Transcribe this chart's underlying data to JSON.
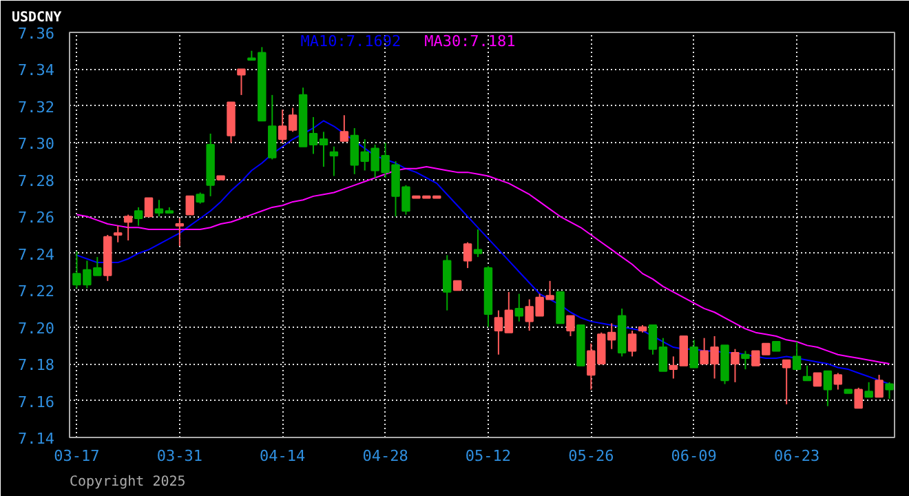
{
  "chart_data": {
    "type": "candlestick",
    "title": "USDCNY",
    "annotations": [
      "Copyright 2025"
    ],
    "categories": [
      "03-17",
      null,
      null,
      null,
      null,
      null,
      null,
      null,
      null,
      null,
      "03-31",
      null,
      null,
      null,
      null,
      null,
      null,
      null,
      null,
      null,
      "04-14",
      null,
      null,
      null,
      null,
      null,
      null,
      null,
      null,
      null,
      "04-28",
      null,
      null,
      null,
      null,
      null,
      null,
      null,
      null,
      null,
      "05-12",
      null,
      null,
      null,
      null,
      null,
      null,
      null,
      null,
      null,
      "05-26",
      null,
      null,
      null,
      null,
      null,
      null,
      null,
      null,
      null,
      "06-09",
      null,
      null,
      null,
      null,
      null,
      null,
      null,
      null,
      null,
      "06-23",
      null,
      null,
      null,
      null,
      null,
      null,
      null,
      null,
      null
    ],
    "ohlc": [
      [
        7.229,
        7.241,
        7.221,
        7.223
      ],
      [
        7.231,
        7.236,
        7.221,
        7.223
      ],
      [
        7.232,
        7.238,
        7.228,
        7.228
      ],
      [
        7.228,
        7.25,
        7.225,
        7.249
      ],
      [
        7.25,
        7.255,
        7.246,
        7.251
      ],
      [
        7.257,
        7.261,
        7.247,
        7.26
      ],
      [
        7.263,
        7.265,
        7.255,
        7.259
      ],
      [
        7.26,
        7.27,
        7.26,
        7.27
      ],
      [
        7.264,
        7.269,
        7.26,
        7.262
      ],
      [
        7.263,
        7.265,
        7.262,
        7.262
      ],
      [
        7.255,
        7.259,
        7.244,
        7.256
      ],
      [
        7.261,
        7.271,
        7.261,
        7.271
      ],
      [
        7.272,
        7.273,
        7.267,
        7.268
      ],
      [
        7.299,
        7.305,
        7.271,
        7.277
      ],
      [
        7.28,
        7.282,
        7.28,
        7.282
      ],
      [
        7.304,
        7.322,
        7.3,
        7.322
      ],
      [
        7.337,
        7.34,
        7.326,
        7.34
      ],
      [
        7.346,
        7.35,
        7.345,
        7.345
      ],
      [
        7.349,
        7.352,
        7.312,
        7.312
      ],
      [
        7.309,
        7.326,
        7.291,
        7.292
      ],
      [
        7.302,
        7.318,
        7.3,
        7.309
      ],
      [
        7.307,
        7.319,
        7.306,
        7.315
      ],
      [
        7.326,
        7.33,
        7.298,
        7.298
      ],
      [
        7.305,
        7.314,
        7.294,
        7.299
      ],
      [
        7.302,
        7.306,
        7.287,
        7.299
      ],
      [
        7.295,
        7.298,
        7.282,
        7.293
      ],
      [
        7.301,
        7.315,
        7.301,
        7.306
      ],
      [
        7.304,
        7.308,
        7.283,
        7.288
      ],
      [
        7.295,
        7.302,
        7.285,
        7.29
      ],
      [
        7.297,
        7.299,
        7.281,
        7.285
      ],
      [
        7.293,
        7.3,
        7.281,
        7.284
      ],
      [
        7.288,
        7.29,
        7.26,
        7.271
      ],
      [
        7.276,
        7.277,
        7.261,
        7.263
      ],
      [
        7.27,
        7.271,
        7.27,
        7.271
      ],
      [
        7.27,
        7.271,
        7.27,
        7.271
      ],
      [
        7.27,
        7.271,
        7.27,
        7.271
      ],
      [
        7.236,
        7.239,
        7.209,
        7.219
      ],
      [
        7.22,
        7.225,
        7.22,
        7.225
      ],
      [
        7.236,
        7.246,
        7.232,
        7.245
      ],
      [
        7.242,
        7.253,
        7.238,
        7.24
      ],
      [
        7.232,
        7.233,
        7.2,
        7.207
      ],
      [
        7.198,
        7.209,
        7.185,
        7.205
      ],
      [
        7.197,
        7.219,
        7.197,
        7.209
      ],
      [
        7.21,
        7.218,
        7.203,
        7.206
      ],
      [
        7.203,
        7.215,
        7.198,
        7.211
      ],
      [
        7.206,
        7.218,
        7.206,
        7.216
      ],
      [
        7.215,
        7.225,
        7.215,
        7.217
      ],
      [
        7.219,
        7.219,
        7.202,
        7.202
      ],
      [
        7.198,
        7.206,
        7.195,
        7.206
      ],
      [
        7.201,
        7.201,
        7.179,
        7.179
      ],
      [
        7.174,
        7.191,
        7.166,
        7.187
      ],
      [
        7.18,
        7.197,
        7.18,
        7.196
      ],
      [
        7.193,
        7.202,
        7.188,
        7.197
      ],
      [
        7.206,
        7.21,
        7.184,
        7.186
      ],
      [
        7.187,
        7.198,
        7.184,
        7.196
      ],
      [
        7.198,
        7.201,
        7.197,
        7.2
      ],
      [
        7.201,
        7.201,
        7.185,
        7.188
      ],
      [
        7.189,
        7.194,
        7.176,
        7.176
      ],
      [
        7.177,
        7.184,
        7.172,
        7.179
      ],
      [
        7.179,
        7.195,
        7.179,
        7.195
      ],
      [
        7.189,
        7.193,
        7.178,
        7.178
      ],
      [
        7.18,
        7.194,
        7.18,
        7.187
      ],
      [
        7.18,
        7.195,
        7.172,
        7.189
      ],
      [
        7.19,
        7.19,
        7.169,
        7.171
      ],
      [
        7.18,
        7.188,
        7.17,
        7.186
      ],
      [
        7.185,
        7.187,
        7.177,
        7.183
      ],
      [
        7.179,
        7.187,
        7.179,
        7.187
      ],
      [
        7.185,
        7.191,
        7.185,
        7.191
      ],
      [
        7.192,
        7.192,
        7.187,
        7.187
      ],
      [
        7.178,
        7.182,
        7.158,
        7.182
      ],
      [
        7.184,
        7.192,
        7.177,
        7.177
      ],
      [
        7.173,
        7.179,
        7.171,
        7.171
      ],
      [
        7.168,
        7.175,
        7.168,
        7.175
      ],
      [
        7.176,
        7.176,
        7.157,
        7.166
      ],
      [
        7.169,
        7.175,
        7.166,
        7.174
      ],
      [
        7.166,
        7.166,
        7.164,
        7.164
      ],
      [
        7.156,
        7.167,
        7.156,
        7.166
      ],
      [
        7.165,
        7.17,
        7.162,
        7.162
      ],
      [
        7.162,
        7.174,
        7.162,
        7.171
      ],
      [
        7.169,
        7.17,
        7.161,
        7.166
      ]
    ],
    "colors": [
      "#00a800",
      "#00a800",
      "#00a800",
      "#ff5b5b",
      "#ff5b5b",
      "#ff5b5b",
      "#00a800",
      "#ff5b5b",
      "#00a800",
      "#00a800",
      "#ff5b5b",
      "#ff5b5b",
      "#00a800",
      "#00a800",
      "#ff5b5b",
      "#ff5b5b",
      "#ff5b5b",
      "#00a800",
      "#00a800",
      "#00a800",
      "#ff5b5b",
      "#ff5b5b",
      "#00a800",
      "#00a800",
      "#00a800",
      "#00a800",
      "#ff5b5b",
      "#00a800",
      "#00a800",
      "#00a800",
      "#00a800",
      "#00a800",
      "#00a800",
      "#ff5b5b",
      "#ff5b5b",
      "#ff5b5b",
      "#00a800",
      "#ff5b5b",
      "#ff5b5b",
      "#00a800",
      "#00a800",
      "#ff5b5b",
      "#ff5b5b",
      "#00a800",
      "#ff5b5b",
      "#ff5b5b",
      "#ff5b5b",
      "#00a800",
      "#ff5b5b",
      "#00a800",
      "#ff5b5b",
      "#ff5b5b",
      "#ff5b5b",
      "#00a800",
      "#ff5b5b",
      "#ff5b5b",
      "#00a800",
      "#00a800",
      "#ff5b5b",
      "#ff5b5b",
      "#00a800",
      "#ff5b5b",
      "#ff5b5b",
      "#00a800",
      "#ff5b5b",
      "#00a800",
      "#ff5b5b",
      "#ff5b5b",
      "#00a800",
      "#ff5b5b",
      "#00a800",
      "#00a800",
      "#ff5b5b",
      "#00a800",
      "#ff5b5b",
      "#00a800",
      "#ff5b5b",
      "#00a800",
      "#ff5b5b",
      "#00a800"
    ],
    "series": [
      {
        "name": "MA10:7.1692",
        "type": "line",
        "color": "#0000ff",
        "values": [
          7.239,
          7.237,
          7.235,
          7.235,
          7.235,
          7.237,
          7.24,
          7.242,
          7.245,
          7.248,
          7.251,
          7.255,
          7.259,
          7.263,
          7.268,
          7.274,
          7.279,
          7.285,
          7.289,
          7.294,
          7.298,
          7.302,
          7.305,
          7.308,
          7.312,
          7.309,
          7.305,
          7.301,
          7.297,
          7.293,
          7.291,
          7.289,
          7.286,
          7.284,
          7.281,
          7.278,
          7.272,
          7.266,
          7.26,
          7.254,
          7.248,
          7.242,
          7.236,
          7.23,
          7.224,
          7.218,
          7.215,
          7.212,
          7.208,
          7.205,
          7.203,
          7.202,
          7.201,
          7.2,
          7.199,
          7.198,
          7.195,
          7.192,
          7.189,
          7.188,
          7.188,
          7.187,
          7.187,
          7.186,
          7.186,
          7.185,
          7.184,
          7.183,
          7.183,
          7.184,
          7.183,
          7.182,
          7.181,
          7.18,
          7.178,
          7.177,
          7.175,
          7.173,
          7.171,
          7.169
        ]
      },
      {
        "name": "MA30:7.181",
        "type": "line",
        "color": "#ff00ff",
        "values": [
          7.261,
          7.26,
          7.258,
          7.256,
          7.255,
          7.254,
          7.254,
          7.253,
          7.253,
          7.253,
          7.253,
          7.253,
          7.253,
          7.254,
          7.256,
          7.257,
          7.259,
          7.261,
          7.263,
          7.265,
          7.266,
          7.268,
          7.269,
          7.271,
          7.272,
          7.273,
          7.275,
          7.277,
          7.279,
          7.281,
          7.283,
          7.285,
          7.286,
          7.286,
          7.287,
          7.286,
          7.285,
          7.284,
          7.284,
          7.283,
          7.282,
          7.28,
          7.278,
          7.275,
          7.272,
          7.268,
          7.264,
          7.26,
          7.257,
          7.254,
          7.25,
          7.246,
          7.242,
          7.238,
          7.234,
          7.229,
          7.226,
          7.222,
          7.219,
          7.216,
          7.213,
          7.21,
          7.208,
          7.205,
          7.202,
          7.199,
          7.197,
          7.196,
          7.195,
          7.193,
          7.192,
          7.19,
          7.189,
          7.187,
          7.185,
          7.184,
          7.183,
          7.182,
          7.181,
          7.18
        ]
      }
    ],
    "ylim": [
      7.14,
      7.36
    ],
    "yticks": [
      7.14,
      7.16,
      7.18,
      {
        "value": 7.2,
        "label": "7.20"
      },
      7.22,
      7.24,
      7.26,
      7.28,
      {
        "value": 7.3,
        "label": "7.30"
      },
      7.32,
      7.34,
      7.36
    ],
    "grid": true
  }
}
